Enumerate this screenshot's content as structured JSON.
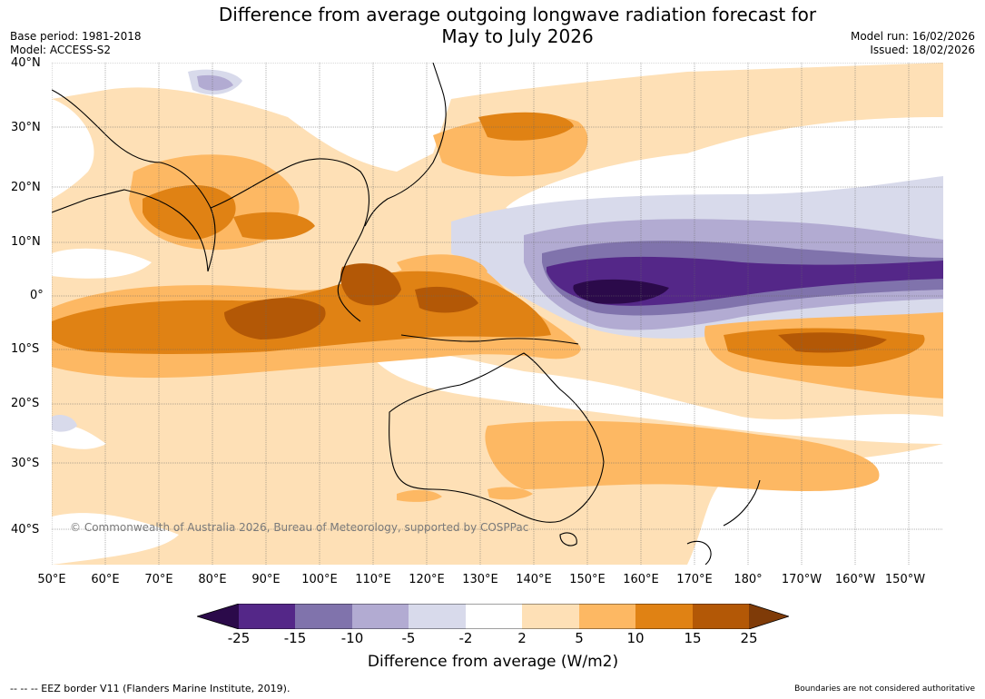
{
  "title_line1": "Difference from average outgoing longwave radiation forecast for",
  "title_line2": "May to July 2026",
  "base_period": "Base period: 1981-2018",
  "model": "Model: ACCESS-S2",
  "model_run": "Model run: 16/02/2026",
  "issued": "Issued: 18/02/2026",
  "latitudes": [
    "40°N",
    "30°N",
    "20°N",
    "10°N",
    "0°",
    "10°S",
    "20°S",
    "30°S",
    "40°S"
  ],
  "longitudes": [
    "50°E",
    "60°E",
    "70°E",
    "80°E",
    "90°E",
    "100°E",
    "110°E",
    "120°E",
    "130°E",
    "140°E",
    "150°E",
    "160°E",
    "170°E",
    "180°",
    "170°W",
    "160°W",
    "150°W"
  ],
  "colorbar": {
    "ticks": [
      "-25",
      "-15",
      "-10",
      "-5",
      "-2",
      "2",
      "5",
      "10",
      "15",
      "25"
    ],
    "colors": {
      "lt_neg25": "#2b0a4a",
      "neg25_neg15": "#542788",
      "neg15_neg10": "#8073ac",
      "neg10_neg5": "#b2abd2",
      "neg5_neg2": "#d8daeb",
      "neg2_2": "#ffffff",
      "pos2_5": "#fee0b6",
      "pos5_10": "#fdb863",
      "pos10_15": "#e08214",
      "pos15_25": "#b35806",
      "gt_25": "#7f3b08"
    },
    "label": "Difference from average (W/m2)"
  },
  "copyright": "© Commonwealth of Australia 2026, Bureau of Meteorology, supported by COSPPac",
  "footnote_left": "--  --  -- EEZ border V11 (Flanders Marine Institute, 2019).",
  "footnote_right": "Boundaries are not considered authoritative"
}
